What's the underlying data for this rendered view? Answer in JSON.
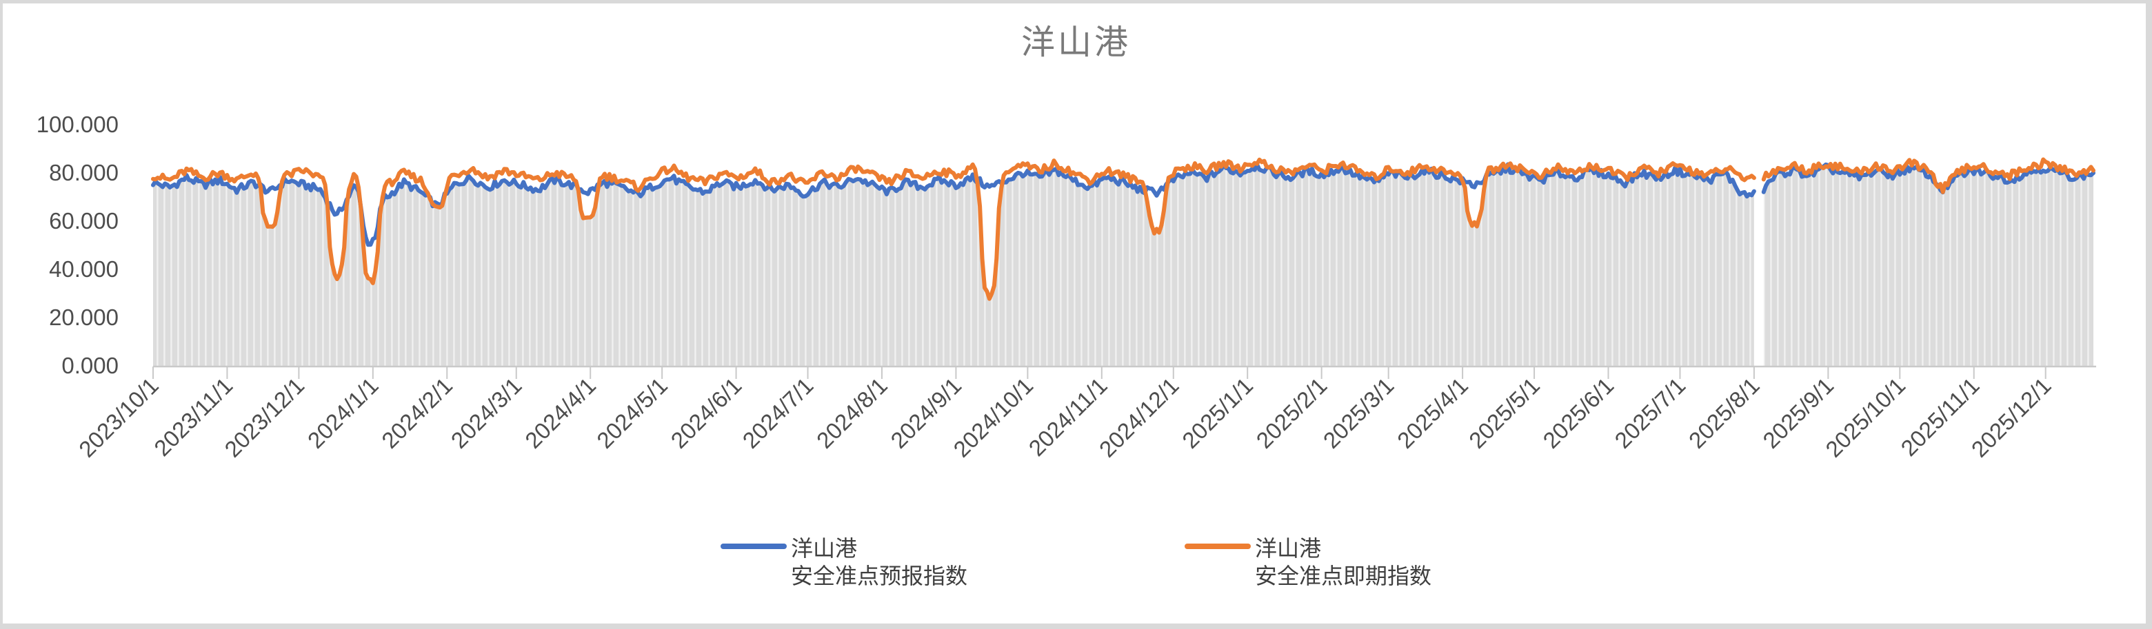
{
  "title": "洋山港",
  "legend": {
    "entries": [
      {
        "line1": "洋山港",
        "line2": "安全准点预报指数",
        "color": "#4472C4"
      },
      {
        "line1": "洋山港",
        "line2": "安全准点即期指数",
        "color": "#ED7D31"
      }
    ]
  },
  "chart_data": {
    "type": "line",
    "title": "洋山港",
    "xlabel": "",
    "ylabel": "",
    "ylim": [
      0,
      100
    ],
    "y_tick_values": [
      0,
      20,
      40,
      60,
      80,
      100
    ],
    "y_tick_labels": [
      "0.000",
      "20.000",
      "40.000",
      "60.000",
      "80.000",
      "100.000"
    ],
    "x_tick_labels": [
      "2023/10/1",
      "2023/11/1",
      "2023/12/1",
      "2024/1/1",
      "2024/2/1",
      "2024/3/1",
      "2024/4/1",
      "2024/5/1",
      "2024/6/1",
      "2024/7/1",
      "2024/8/1",
      "2024/9/1",
      "2024/10/1",
      "2024/11/1",
      "2024/12/1",
      "2025/1/1",
      "2025/2/1",
      "2025/3/1",
      "2025/4/1",
      "2025/5/1",
      "2025/6/1",
      "2025/7/1",
      "2025/8/1",
      "2025/9/1",
      "2025/10/1",
      "2025/11/1",
      "2025/12/1"
    ],
    "x_start": "2023/10/1",
    "x_end": "2025/12/20",
    "x_step_days": 7,
    "grid": "none",
    "legend_position": "bottom",
    "data_gap_near": "2025/8/1",
    "data_gap_week_index": 96,
    "series": [
      {
        "name": "洋山港 安全准点预报指数",
        "color": "#4472C4",
        "values": [
          76,
          74,
          78,
          75,
          77,
          73,
          76,
          72,
          77,
          75,
          73,
          62,
          74,
          51,
          70,
          76,
          72,
          66,
          75,
          78,
          74,
          77,
          75,
          73,
          77,
          75,
          72,
          76,
          74,
          71,
          75,
          78,
          74,
          72,
          76,
          74,
          77,
          73,
          75,
          71,
          76,
          74,
          78,
          75,
          72,
          76,
          74,
          77,
          75,
          78,
          74,
          77,
          80,
          78,
          81,
          77,
          74,
          78,
          76,
          73,
          72,
          77,
          80,
          78,
          82,
          80,
          83,
          80,
          78,
          81,
          79,
          82,
          79,
          76,
          80,
          78,
          81,
          79,
          77,
          75,
          79,
          82,
          79,
          77,
          80,
          78,
          81,
          79,
          76,
          80,
          78,
          81,
          79,
          77,
          80,
          71,
          null,
          79,
          81,
          79,
          82,
          80,
          78,
          81,
          79,
          82,
          80,
          73,
          79,
          81,
          79,
          77,
          80,
          82,
          80,
          78,
          80
        ]
      },
      {
        "name": "洋山港 安全准点即期指数",
        "color": "#ED7D31",
        "values": [
          79,
          77,
          81,
          78,
          80,
          77,
          80,
          57,
          79,
          81,
          78,
          37,
          78,
          35,
          75,
          80,
          77,
          65,
          79,
          82,
          78,
          81,
          79,
          77,
          80,
          78,
          60,
          79,
          77,
          74,
          79,
          82,
          78,
          76,
          80,
          78,
          81,
          76,
          79,
          75,
          80,
          78,
          82,
          79,
          76,
          80,
          78,
          81,
          79,
          82,
          29,
          80,
          83,
          81,
          84,
          80,
          77,
          81,
          79,
          76,
          56,
          80,
          83,
          81,
          84,
          82,
          85,
          82,
          80,
          83,
          81,
          84,
          81,
          78,
          82,
          80,
          83,
          81,
          79,
          59,
          81,
          84,
          81,
          79,
          82,
          80,
          83,
          81,
          78,
          82,
          80,
          83,
          81,
          79,
          82,
          78,
          null,
          81,
          83,
          81,
          84,
          82,
          80,
          83,
          81,
          84,
          82,
          73,
          81,
          83,
          81,
          79,
          82,
          84,
          82,
          80,
          81
        ]
      }
    ],
    "background_area": {
      "description": "striped gray fill under the lower envelope of the two lines",
      "color": "#dcdcdc",
      "stripe_color": "#f1f1f1",
      "follows": "series-min"
    },
    "style": {
      "line_width": 6,
      "render_noise_amplitude": 1.6,
      "axis_color": "#c9c9c9",
      "tick_label_color": "#4d4d4d",
      "title_color": "#7a7a7a",
      "frame_color": "#d9d9d9"
    }
  }
}
